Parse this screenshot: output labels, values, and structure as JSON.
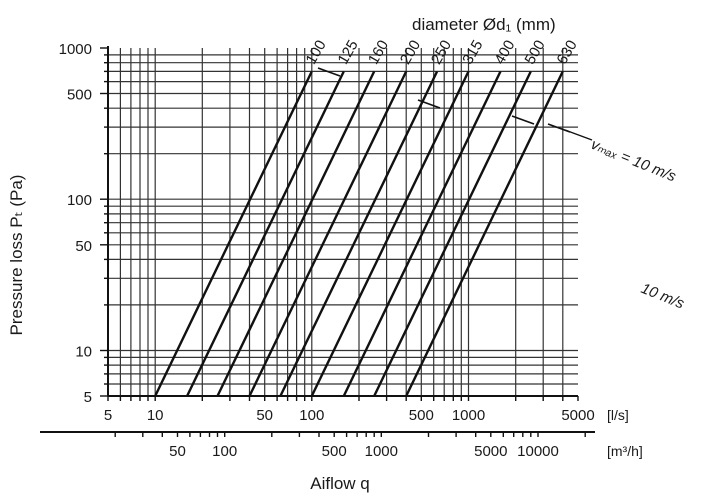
{
  "chart_data": {
    "type": "line",
    "title": "diameter Ød₁ (mm)",
    "xlabel": "Aiflow q",
    "ylabel": "Pressure loss Pₜ (Pa)",
    "x_scale": "log",
    "y_scale": "log",
    "xlim": [
      5,
      5000
    ],
    "ylim": [
      5,
      1000
    ],
    "x_units": [
      "[l/s]",
      "[m³/h]"
    ],
    "x_ticks": [
      5,
      10,
      50,
      100,
      500,
      1000,
      5000
    ],
    "x_ticks_secondary": [
      50,
      100,
      500,
      1000,
      5000,
      10000
    ],
    "y_ticks": [
      5,
      10,
      50,
      100,
      500,
      1000
    ],
    "grid": true,
    "series": [
      {
        "name": "100",
        "x": [
          10,
          100
        ],
        "y": [
          5,
          700
        ]
      },
      {
        "name": "125",
        "x": [
          16,
          160
        ],
        "y": [
          5,
          700
        ]
      },
      {
        "name": "160",
        "x": [
          25,
          250
        ],
        "y": [
          5,
          700
        ]
      },
      {
        "name": "200",
        "x": [
          40,
          400
        ],
        "y": [
          5,
          700
        ]
      },
      {
        "name": "250",
        "x": [
          63,
          630
        ],
        "y": [
          5,
          700
        ]
      },
      {
        "name": "315",
        "x": [
          100,
          1000
        ],
        "y": [
          5,
          700
        ]
      },
      {
        "name": "400",
        "x": [
          160,
          1600
        ],
        "y": [
          5,
          700
        ]
      },
      {
        "name": "500",
        "x": [
          250,
          2500
        ],
        "y": [
          5,
          700
        ]
      },
      {
        "name": "630",
        "x": [
          400,
          4000
        ],
        "y": [
          5,
          700
        ]
      }
    ],
    "annotations": [
      "vₘₐₓ = 10 m/s",
      "10 m/s"
    ]
  }
}
